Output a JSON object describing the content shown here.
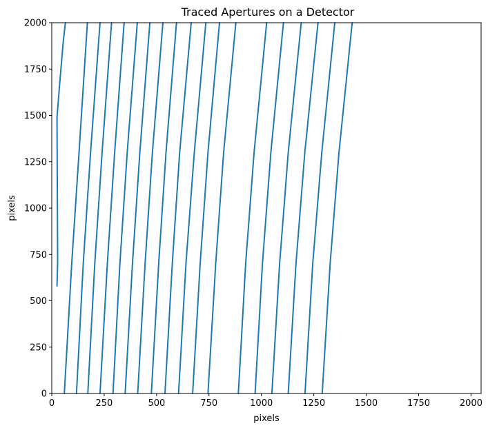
{
  "chart_data": {
    "type": "line",
    "title": "Traced Apertures on a Detector",
    "xlabel": "pixels",
    "ylabel": "pixels",
    "xlim": [
      0,
      2048
    ],
    "ylim": [
      0,
      2000
    ],
    "xticks": [
      0,
      250,
      500,
      750,
      1000,
      1250,
      1500,
      1750,
      2000
    ],
    "yticks": [
      0,
      250,
      500,
      750,
      1000,
      1250,
      1500,
      1750,
      2000
    ],
    "grid": false,
    "legend": "none",
    "line_color": "#1f77b4",
    "series": [
      {
        "points": [
          [
            25,
            580
          ],
          [
            28,
            710
          ],
          [
            25,
            1490
          ],
          [
            40,
            1700
          ],
          [
            55,
            1900
          ],
          [
            65,
            2000
          ]
        ]
      },
      {
        "points": [
          [
            60,
            0
          ],
          [
            95,
            700
          ],
          [
            130,
            1300
          ],
          [
            170,
            2000
          ]
        ]
      },
      {
        "points": [
          [
            118,
            0
          ],
          [
            150,
            700
          ],
          [
            185,
            1300
          ],
          [
            230,
            2000
          ]
        ]
      },
      {
        "points": [
          [
            172,
            0
          ],
          [
            205,
            700
          ],
          [
            240,
            1300
          ],
          [
            285,
            2000
          ]
        ]
      },
      {
        "points": [
          [
            230,
            0
          ],
          [
            265,
            700
          ],
          [
            300,
            1300
          ],
          [
            345,
            2000
          ]
        ]
      },
      {
        "points": [
          [
            292,
            0
          ],
          [
            325,
            700
          ],
          [
            360,
            1300
          ],
          [
            408,
            2000
          ]
        ]
      },
      {
        "points": [
          [
            350,
            0
          ],
          [
            385,
            700
          ],
          [
            420,
            1300
          ],
          [
            468,
            2000
          ]
        ]
      },
      {
        "points": [
          [
            410,
            0
          ],
          [
            445,
            700
          ],
          [
            480,
            1300
          ],
          [
            530,
            2000
          ]
        ]
      },
      {
        "points": [
          [
            475,
            0
          ],
          [
            510,
            700
          ],
          [
            545,
            1300
          ],
          [
            595,
            2000
          ]
        ]
      },
      {
        "points": [
          [
            540,
            0
          ],
          [
            575,
            700
          ],
          [
            610,
            1300
          ],
          [
            665,
            2000
          ]
        ]
      },
      {
        "points": [
          [
            605,
            0
          ],
          [
            640,
            700
          ],
          [
            680,
            1300
          ],
          [
            735,
            2000
          ]
        ]
      },
      {
        "points": [
          [
            672,
            0
          ],
          [
            708,
            700
          ],
          [
            745,
            1300
          ],
          [
            800,
            2000
          ]
        ]
      },
      {
        "points": [
          [
            745,
            0
          ],
          [
            782,
            700
          ],
          [
            820,
            1300
          ],
          [
            878,
            2000
          ]
        ]
      },
      {
        "points": [
          [
            890,
            0
          ],
          [
            925,
            700
          ],
          [
            965,
            1300
          ],
          [
            1025,
            2000
          ]
        ]
      },
      {
        "points": [
          [
            970,
            0
          ],
          [
            1005,
            700
          ],
          [
            1045,
            1300
          ],
          [
            1105,
            2000
          ]
        ]
      },
      {
        "points": [
          [
            1050,
            0
          ],
          [
            1087,
            700
          ],
          [
            1128,
            1300
          ],
          [
            1190,
            2000
          ]
        ]
      },
      {
        "points": [
          [
            1128,
            0
          ],
          [
            1165,
            700
          ],
          [
            1207,
            1300
          ],
          [
            1270,
            2000
          ]
        ]
      },
      {
        "points": [
          [
            1208,
            0
          ],
          [
            1245,
            700
          ],
          [
            1288,
            1300
          ],
          [
            1350,
            2000
          ]
        ]
      },
      {
        "points": [
          [
            1290,
            0
          ],
          [
            1328,
            700
          ],
          [
            1370,
            1300
          ],
          [
            1433,
            2000
          ]
        ]
      }
    ]
  }
}
